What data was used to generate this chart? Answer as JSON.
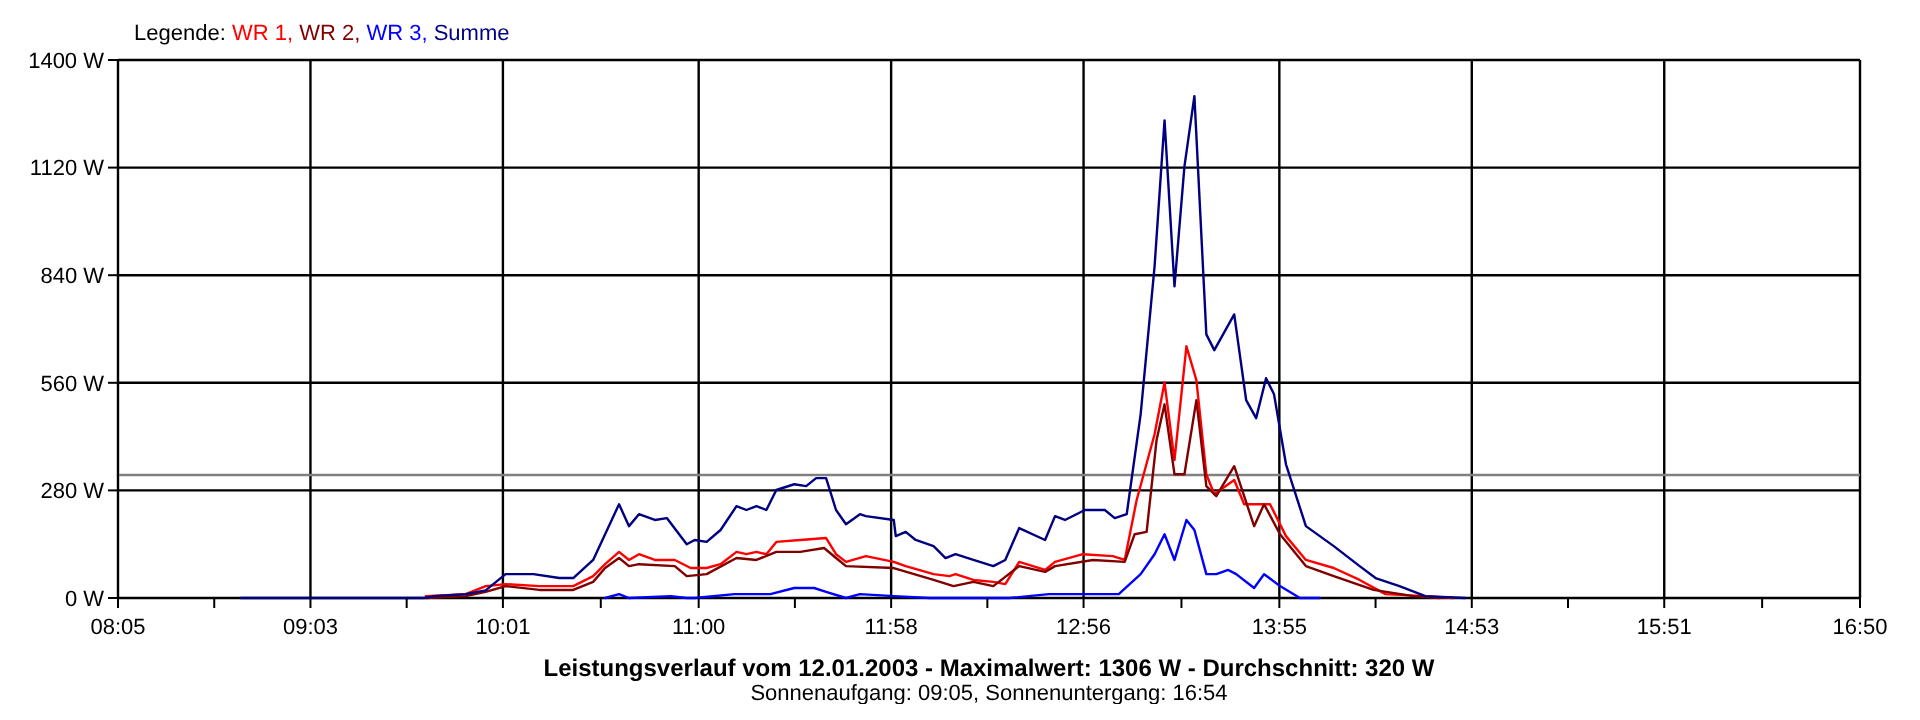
{
  "chart_data": {
    "type": "line",
    "title": "Leistungsverlauf vom 12.01.2003 - Maximalwert: 1306 W - Durchschnitt: 320 W",
    "subtitle": "Sonnenaufgang: 09:05, Sonnenuntergang: 16:54",
    "legend_title": "Legende:",
    "legend": "top left",
    "grid": true,
    "marker": "none",
    "line_style": "solid",
    "xlim": [
      8.0833,
      16.8333
    ],
    "xticks": [
      {
        "value": 8.0833,
        "label": "08:05"
      },
      {
        "value": 8.5667,
        "label": null
      },
      {
        "value": 9.05,
        "label": "09:03"
      },
      {
        "value": 9.5333,
        "label": null
      },
      {
        "value": 10.0167,
        "label": "10:01"
      },
      {
        "value": 10.5083,
        "label": null
      },
      {
        "value": 11.0,
        "label": "11:00"
      },
      {
        "value": 11.4833,
        "label": null
      },
      {
        "value": 11.9667,
        "label": "11:58"
      },
      {
        "value": 12.45,
        "label": null
      },
      {
        "value": 12.9333,
        "label": "12:56"
      },
      {
        "value": 13.425,
        "label": null
      },
      {
        "value": 13.9167,
        "label": "13:55"
      },
      {
        "value": 14.4,
        "label": null
      },
      {
        "value": 14.8833,
        "label": "14:53"
      },
      {
        "value": 15.3667,
        "label": null
      },
      {
        "value": 15.85,
        "label": "15:51"
      },
      {
        "value": 16.3417,
        "label": null
      },
      {
        "value": 16.8333,
        "label": "16:50"
      }
    ],
    "ylim": [
      0,
      1400
    ],
    "yticks": [
      {
        "value": 0,
        "label": "0 W"
      },
      {
        "value": 280,
        "label": "280 W"
      },
      {
        "value": 560,
        "label": "560 W"
      },
      {
        "value": 840,
        "label": "840 W"
      },
      {
        "value": 1120,
        "label": "1120 W"
      },
      {
        "value": 1400,
        "label": "1400 W"
      }
    ],
    "ref_lines": [
      {
        "axis": "y",
        "value": 320,
        "color": "#808080"
      }
    ],
    "series": [
      {
        "name": "WR 1,",
        "color": "#ff0000",
        "x": [
          9.63,
          9.83,
          9.93,
          10.03,
          10.2,
          10.37,
          10.47,
          10.53,
          10.6,
          10.65,
          10.7,
          10.78,
          10.88,
          10.96,
          11.04,
          11.11,
          11.19,
          11.24,
          11.29,
          11.34,
          11.39,
          11.51,
          11.64,
          11.69,
          11.74,
          11.84,
          11.98,
          12.04,
          12.18,
          12.26,
          12.29,
          12.38,
          12.48,
          12.54,
          12.61,
          12.74,
          12.79,
          12.93,
          13.08,
          13.14,
          13.2,
          13.29,
          13.34,
          13.39,
          13.45,
          13.5,
          13.55,
          13.59,
          13.69,
          13.74,
          13.87,
          13.95,
          14.05,
          14.19,
          14.32,
          14.45,
          14.65,
          14.79
        ],
        "values": [
          5,
          10,
          31,
          36,
          31,
          31,
          57,
          88,
          120,
          99,
          114,
          99,
          99,
          78,
          78,
          88,
          120,
          114,
          120,
          114,
          146,
          151,
          156,
          114,
          94,
          109,
          94,
          83,
          62,
          57,
          62,
          47,
          42,
          36,
          94,
          73,
          94,
          114,
          109,
          99,
          255,
          426,
          561,
          359,
          655,
          567,
          322,
          270,
          307,
          244,
          244,
          161,
          99,
          78,
          47,
          10,
          5,
          0
        ]
      },
      {
        "name": "WR 2,",
        "color": "#800000",
        "x": [
          9.63,
          9.83,
          9.93,
          10.03,
          10.2,
          10.37,
          10.47,
          10.53,
          10.6,
          10.65,
          10.7,
          10.88,
          10.94,
          11.04,
          11.19,
          11.29,
          11.39,
          11.51,
          11.63,
          11.69,
          11.74,
          11.98,
          12.18,
          12.28,
          12.38,
          12.48,
          12.61,
          12.74,
          12.79,
          12.98,
          13.14,
          13.19,
          13.25,
          13.3,
          13.34,
          13.39,
          13.44,
          13.5,
          13.55,
          13.6,
          13.69,
          13.79,
          13.84,
          13.92,
          14.05,
          14.19,
          14.39,
          14.59,
          14.72
        ],
        "values": [
          0,
          5,
          16,
          31,
          21,
          21,
          42,
          78,
          104,
          83,
          88,
          83,
          57,
          62,
          104,
          99,
          120,
          120,
          130,
          104,
          83,
          78,
          47,
          31,
          42,
          31,
          83,
          68,
          83,
          99,
          94,
          166,
          172,
          411,
          504,
          322,
          322,
          515,
          291,
          265,
          343,
          187,
          244,
          166,
          83,
          57,
          21,
          5,
          0
        ]
      },
      {
        "name": "WR 3,",
        "color": "#0000ff",
        "x": [
          10.53,
          10.6,
          10.65,
          10.86,
          10.94,
          10.98,
          11.18,
          11.36,
          11.48,
          11.58,
          11.64,
          11.74,
          11.81,
          11.98,
          12.16,
          12.56,
          12.76,
          12.81,
          13.11,
          13.22,
          13.29,
          13.34,
          13.39,
          13.45,
          13.49,
          13.55,
          13.6,
          13.66,
          13.7,
          13.79,
          13.84,
          13.92,
          14.02,
          14.12
        ],
        "values": [
          0,
          10,
          0,
          5,
          0,
          0,
          10,
          10,
          26,
          26,
          16,
          0,
          10,
          5,
          0,
          0,
          10,
          10,
          10,
          62,
          114,
          166,
          99,
          203,
          177,
          62,
          62,
          73,
          62,
          26,
          62,
          31,
          0,
          0
        ]
      },
      {
        "name": "Summe",
        "color": "#000080",
        "x": [
          8.7,
          9.55,
          9.62,
          9.67,
          9.83,
          9.93,
          10.03,
          10.17,
          10.3,
          10.37,
          10.47,
          10.53,
          10.6,
          10.65,
          10.7,
          10.78,
          10.84,
          10.94,
          10.98,
          11.04,
          11.11,
          11.19,
          11.24,
          11.29,
          11.34,
          11.39,
          11.48,
          11.54,
          11.59,
          11.64,
          11.69,
          11.74,
          11.81,
          11.84,
          11.98,
          11.99,
          12.04,
          12.09,
          12.18,
          12.24,
          12.29,
          12.38,
          12.48,
          12.54,
          12.61,
          12.74,
          12.79,
          12.84,
          12.94,
          13.04,
          13.09,
          13.15,
          13.22,
          13.29,
          13.34,
          13.39,
          13.44,
          13.49,
          13.55,
          13.59,
          13.69,
          13.75,
          13.8,
          13.85,
          13.89,
          13.95,
          14.05,
          14.19,
          14.32,
          14.4,
          14.52,
          14.65,
          14.85
        ],
        "values": [
          0,
          0,
          0,
          5,
          10,
          20,
          62,
          62,
          52,
          52,
          99,
          166,
          244,
          187,
          218,
          203,
          208,
          140,
          151,
          146,
          177,
          239,
          229,
          239,
          229,
          281,
          296,
          291,
          312,
          312,
          229,
          192,
          218,
          213,
          203,
          161,
          172,
          151,
          135,
          104,
          114,
          99,
          83,
          99,
          182,
          151,
          213,
          203,
          229,
          229,
          208,
          218,
          478,
          863,
          1243,
          811,
          1123,
          1306,
          686,
          645,
          738,
          515,
          468,
          572,
          530,
          348,
          187,
          135,
          83,
          52,
          31,
          5,
          0
        ]
      }
    ]
  }
}
